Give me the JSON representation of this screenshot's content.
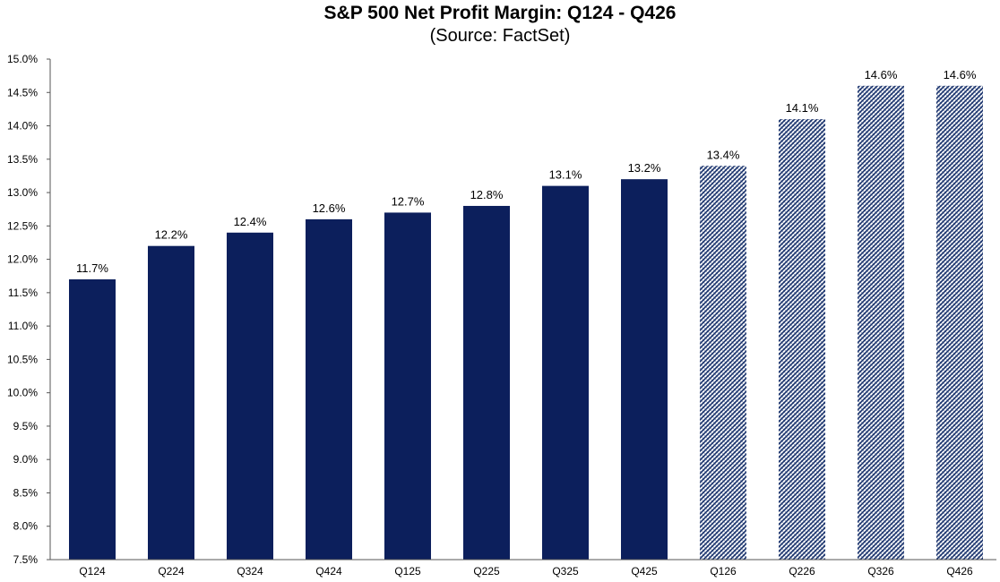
{
  "chart_data": {
    "type": "bar",
    "title": "S&P 500 Net Profit Margin: Q124 - Q426",
    "subtitle": "(Source: FactSet)",
    "xlabel": "",
    "ylabel": "",
    "ylim": [
      7.5,
      15.0
    ],
    "ytick_step": 0.5,
    "ytick_labels": [
      "7.5%",
      "8.0%",
      "8.5%",
      "9.0%",
      "9.5%",
      "10.0%",
      "10.5%",
      "11.0%",
      "11.5%",
      "12.0%",
      "12.5%",
      "13.0%",
      "13.5%",
      "14.0%",
      "14.5%",
      "15.0%"
    ],
    "categories": [
      "Q124",
      "Q224",
      "Q324",
      "Q424",
      "Q125",
      "Q225",
      "Q325",
      "Q425",
      "Q126",
      "Q226",
      "Q326",
      "Q426"
    ],
    "values": [
      11.7,
      12.2,
      12.4,
      12.6,
      12.7,
      12.8,
      13.1,
      13.2,
      13.4,
      14.1,
      14.6,
      14.6
    ],
    "value_labels": [
      "11.7%",
      "12.2%",
      "12.4%",
      "12.6%",
      "12.7%",
      "12.8%",
      "13.1%",
      "13.2%",
      "13.4%",
      "14.1%",
      "14.6%",
      "14.6%"
    ],
    "bar_styles": [
      "actual",
      "actual",
      "actual",
      "actual",
      "actual",
      "actual",
      "actual",
      "actual",
      "estimate",
      "estimate",
      "estimate",
      "estimate"
    ],
    "grid": false,
    "colors": {
      "actual": "#0c1f5c",
      "estimate": "#17306b",
      "estimate_bg": "#ffffff",
      "axis": "#555555"
    }
  }
}
